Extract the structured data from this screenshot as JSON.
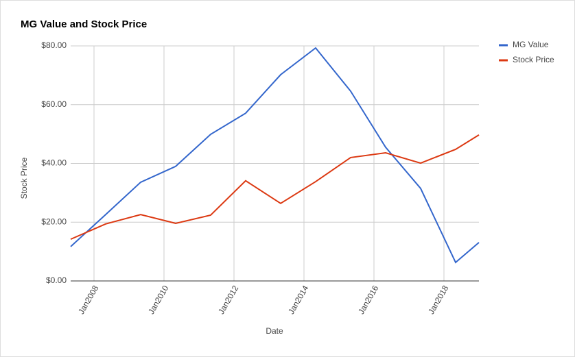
{
  "chart_data": {
    "type": "line",
    "title": "MG Value and Stock Price",
    "x_label": "Date",
    "y_label": "Stock Price",
    "x": [
      "2007-05",
      "2008-05",
      "2009-05",
      "2010-05",
      "2011-05",
      "2012-05",
      "2013-05",
      "2014-05",
      "2015-05",
      "2016-05",
      "2017-05",
      "2018-05",
      "2019-01"
    ],
    "series": [
      {
        "name": "MG Value",
        "color": "#3366cc",
        "values": [
          11.7,
          22.6,
          33.6,
          39.0,
          49.9,
          57.1,
          70.2,
          79.3,
          64.6,
          45.5,
          31.5,
          6.3,
          13.1
        ]
      },
      {
        "name": "Stock Price",
        "color": "#dc3912",
        "values": [
          14.2,
          19.4,
          22.6,
          19.6,
          22.4,
          34.1,
          26.4,
          33.8,
          42.0,
          43.6,
          40.1,
          44.8,
          49.7
        ]
      }
    ],
    "xlim": [
      "2007-05",
      "2019-01"
    ],
    "xticks": [
      {
        "value": "2008-01",
        "label": "Jan2008"
      },
      {
        "value": "2010-01",
        "label": "Jan2010"
      },
      {
        "value": "2012-01",
        "label": "Jan2012"
      },
      {
        "value": "2014-01",
        "label": "Jan2014"
      },
      {
        "value": "2016-01",
        "label": "Jan2016"
      },
      {
        "value": "2018-01",
        "label": "Jan2018"
      }
    ],
    "ylim": [
      0,
      80
    ],
    "yticks": [
      {
        "value": 0,
        "label": "$0.00"
      },
      {
        "value": 20,
        "label": "$20.00"
      },
      {
        "value": 40,
        "label": "$40.00"
      },
      {
        "value": 60,
        "label": "$60.00"
      },
      {
        "value": 80,
        "label": "$80.00"
      }
    ],
    "grid": true,
    "legend": "right"
  }
}
